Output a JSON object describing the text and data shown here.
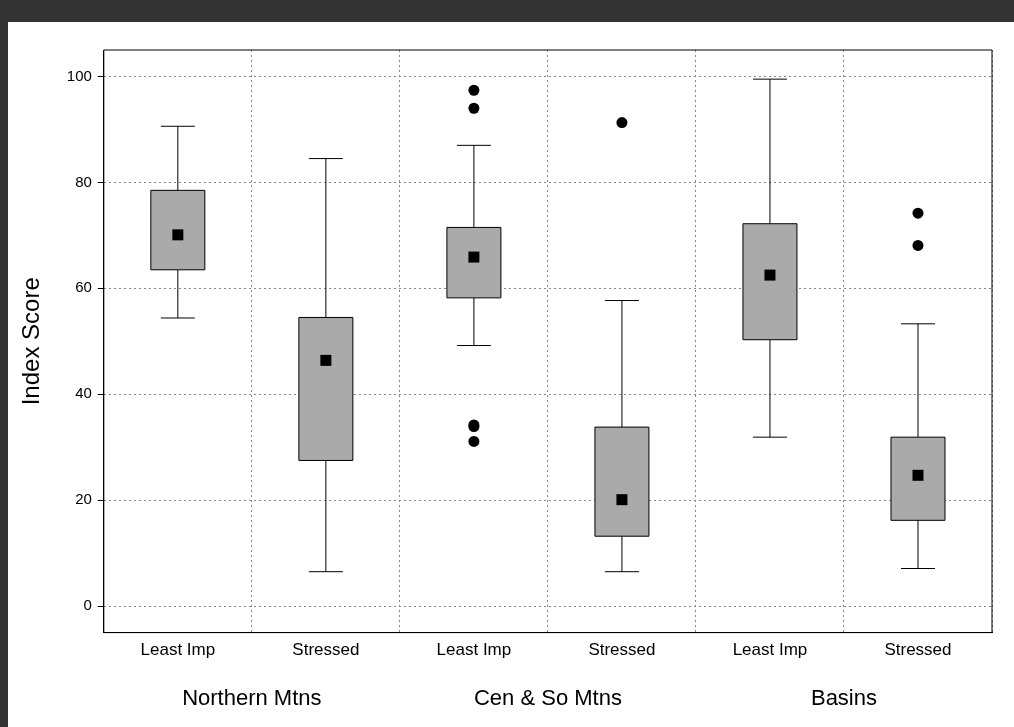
{
  "chart_data": {
    "type": "box",
    "ylabel": "Index Score",
    "categories": [
      "Least Imp",
      "Stressed",
      "Least Imp",
      "Stressed",
      "Least Imp",
      "Stressed"
    ],
    "color": "#aaaaaa",
    "boxes": [
      {
        "low": 54.4,
        "q1": 63.5,
        "median": 70.1,
        "q3": 78.5,
        "high": 90.6
      },
      {
        "low": 6.5,
        "q1": 27.5,
        "median": 46.4,
        "q3": 54.5,
        "high": 84.5
      },
      {
        "low": 49.2,
        "q1": 58.2,
        "median": 65.9,
        "q3": 71.5,
        "high": 87.0,
        "outliers": [
          97.4,
          94.0,
          34.2,
          33.9,
          31.1
        ]
      },
      {
        "low": 6.5,
        "q1": 13.2,
        "median": 20.1,
        "q3": 33.8,
        "high": 57.7,
        "outliers": [
          91.3
        ]
      },
      {
        "low": 31.9,
        "q1": 50.3,
        "median": 62.5,
        "q3": 72.2,
        "high": 99.5
      },
      {
        "low": 7.1,
        "q1": 16.2,
        "median": 24.7,
        "q3": 31.9,
        "high": 53.3,
        "outliers": [
          74.2,
          68.1
        ]
      }
    ],
    "ylim": [
      -5,
      105
    ],
    "yticks": [
      0,
      20,
      40,
      60,
      80,
      100
    ],
    "grid": true,
    "marker": "square",
    "annotations": [
      "Northern Mtns",
      "Cen & So Mtns",
      "Basins"
    ]
  }
}
